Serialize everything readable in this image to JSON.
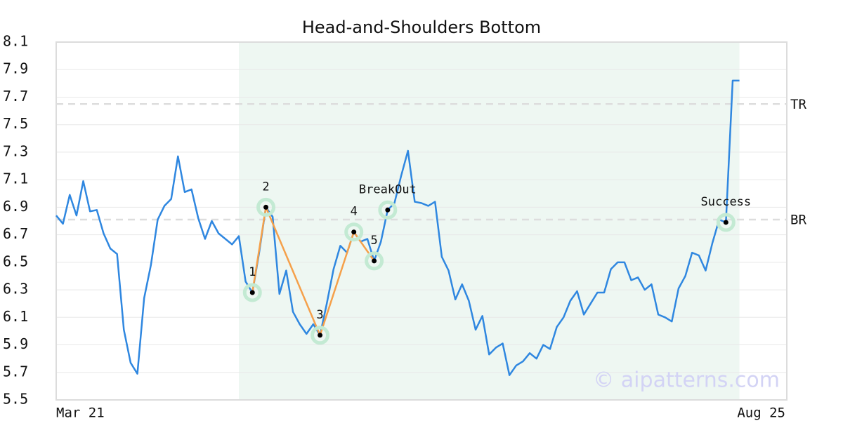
{
  "chart_data": {
    "type": "line",
    "title": "Head-and-Shoulders Bottom",
    "x_end_labels": [
      "Mar 21",
      "Aug 25"
    ],
    "color": "#2f87e0",
    "values": [
      6.84,
      6.78,
      6.99,
      6.84,
      7.09,
      6.87,
      6.88,
      6.71,
      6.6,
      6.56,
      6.01,
      5.77,
      5.69,
      6.24,
      6.48,
      6.81,
      6.91,
      6.96,
      7.27,
      7.01,
      7.03,
      6.82,
      6.67,
      6.8,
      6.71,
      6.67,
      6.63,
      6.69,
      6.36,
      6.28,
      6.57,
      6.9,
      6.83,
      6.27,
      6.44,
      6.14,
      6.05,
      5.98,
      6.05,
      5.97,
      6.2,
      6.45,
      6.62,
      6.57,
      6.72,
      6.65,
      6.67,
      6.51,
      6.65,
      6.88,
      6.93,
      7.13,
      7.31,
      6.94,
      6.93,
      6.91,
      6.94,
      6.54,
      6.44,
      6.23,
      6.34,
      6.22,
      6.01,
      6.11,
      5.83,
      5.88,
      5.91,
      5.68,
      5.75,
      5.78,
      5.84,
      5.8,
      5.9,
      5.87,
      6.03,
      6.1,
      6.22,
      6.29,
      6.12,
      6.2,
      6.28,
      6.28,
      6.45,
      6.5,
      6.5,
      6.37,
      6.39,
      6.3,
      6.34,
      6.12,
      6.1,
      6.07,
      6.31,
      6.4,
      6.57,
      6.55,
      6.44,
      6.64,
      6.81,
      6.79,
      7.82,
      7.82
    ],
    "ylim": [
      5.5,
      8.1
    ],
    "yticks": [
      5.5,
      5.7,
      5.9,
      6.1,
      6.3,
      6.5,
      6.7,
      6.9,
      7.1,
      7.3,
      7.5,
      7.7,
      7.9,
      8.1
    ],
    "grid": true,
    "shaded_range": [
      27,
      101
    ],
    "shade_color": "#eef7f2",
    "ref_lines": [
      {
        "label": "TR",
        "value": 7.65
      },
      {
        "label": "BR",
        "value": 6.81
      }
    ],
    "pattern_color": "#f5a04a",
    "annotations": [
      {
        "label": "1",
        "index": 29,
        "value": 6.28
      },
      {
        "label": "2",
        "index": 31,
        "value": 6.9
      },
      {
        "label": "3",
        "index": 39,
        "value": 5.97
      },
      {
        "label": "4",
        "index": 44,
        "value": 6.72
      },
      {
        "label": "5",
        "index": 47,
        "value": 6.51
      },
      {
        "label": "BreakOut",
        "index": 49,
        "value": 6.88
      },
      {
        "label": "Success",
        "index": 99,
        "value": 6.79
      }
    ],
    "watermark": "© aipatterns.com"
  }
}
